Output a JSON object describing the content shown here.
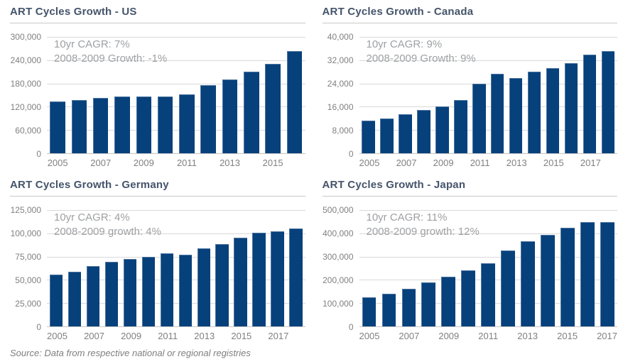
{
  "page": {
    "source_note": "Source: Data from respective national or regional registries"
  },
  "colors": {
    "bar_fill": "#07417C",
    "title_text": "#44546A",
    "tick_text": "#808080",
    "annotation_text": "#9EA0A3",
    "gridline": "#D9D9D9",
    "axis_line": "#C5C5C5",
    "title_rule": "#C9C9C9",
    "source_text": "#7F7F7F"
  },
  "chart_data": [
    {
      "type": "bar",
      "title": "ART Cycles Growth - US",
      "annotation": {
        "line1": "10yr CAGR: 7%",
        "line2": "2008-2009 Growth: -1%"
      },
      "x": [
        2005,
        2006,
        2007,
        2008,
        2009,
        2010,
        2011,
        2012,
        2013,
        2014,
        2015,
        2016
      ],
      "values": [
        133000,
        137000,
        142000,
        147000,
        146000,
        146000,
        151000,
        176000,
        190000,
        210000,
        231000,
        264000
      ],
      "ylim": [
        0,
        300000
      ],
      "ytick_labels": [
        "300,000",
        "240,000",
        "180,000",
        "120,000",
        "60,000",
        "0"
      ],
      "xtick_labels": [
        "2005",
        "2007",
        "2009",
        "2011",
        "2013",
        "2015"
      ],
      "grid": true,
      "legend": "none"
    },
    {
      "type": "bar",
      "title": "ART Cycles Growth - Canada",
      "annotation": {
        "line1": "10yr CAGR: 9%",
        "line2": "2008-2009 Growth: 9%"
      },
      "x": [
        2005,
        2006,
        2007,
        2008,
        2009,
        2010,
        2011,
        2012,
        2013,
        2014,
        2015,
        2016,
        2017,
        2018
      ],
      "values": [
        11300,
        12000,
        13400,
        14800,
        16100,
        18200,
        24000,
        27200,
        25900,
        28100,
        29300,
        31100,
        33900,
        35200
      ],
      "ylim": [
        0,
        40000
      ],
      "ytick_labels": [
        "40,000",
        "32,000",
        "24,000",
        "16,000",
        "8,000",
        "0"
      ],
      "xtick_labels": [
        "2005",
        "2007",
        "2009",
        "2011",
        "2013",
        "2015",
        "2017"
      ],
      "grid": true,
      "legend": "none"
    },
    {
      "type": "bar",
      "title": "ART Cycles Growth - Germany",
      "annotation": {
        "line1": "10yr CAGR: 4%",
        "line2": "2008-2009 growth: 4%"
      },
      "x": [
        2005,
        2006,
        2007,
        2008,
        2009,
        2010,
        2011,
        2012,
        2013,
        2014,
        2015,
        2016,
        2017,
        2018
      ],
      "values": [
        56000,
        59000,
        64500,
        69500,
        72500,
        74500,
        78500,
        77000,
        83500,
        88500,
        95500,
        100500,
        102000,
        105000
      ],
      "ylim": [
        0,
        125000
      ],
      "ytick_labels": [
        "125,000",
        "100,000",
        "75,000",
        "50,000",
        "25,000",
        "0"
      ],
      "xtick_labels": [
        "2005",
        "2007",
        "2009",
        "2011",
        "2013",
        "2015",
        "2017"
      ],
      "grid": true,
      "legend": "none"
    },
    {
      "type": "bar",
      "title": "ART Cycles Growth - Japan",
      "annotation": {
        "line1": "10yr CAGR: 11%",
        "line2": "2008-2009 growth: 12%"
      },
      "x": [
        2005,
        2006,
        2007,
        2008,
        2009,
        2010,
        2011,
        2012,
        2013,
        2014,
        2015,
        2016,
        2017
      ],
      "values": [
        125000,
        140000,
        162000,
        190000,
        214000,
        242000,
        270000,
        327000,
        367000,
        394000,
        425000,
        448000,
        448000
      ],
      "ylim": [
        0,
        500000
      ],
      "ytick_labels": [
        "500,000",
        "400,000",
        "300,000",
        "200,000",
        "100,000",
        "0"
      ],
      "xtick_labels": [
        "2005",
        "2007",
        "2009",
        "2011",
        "2013",
        "2015",
        "2017"
      ],
      "grid": true,
      "legend": "none"
    }
  ]
}
